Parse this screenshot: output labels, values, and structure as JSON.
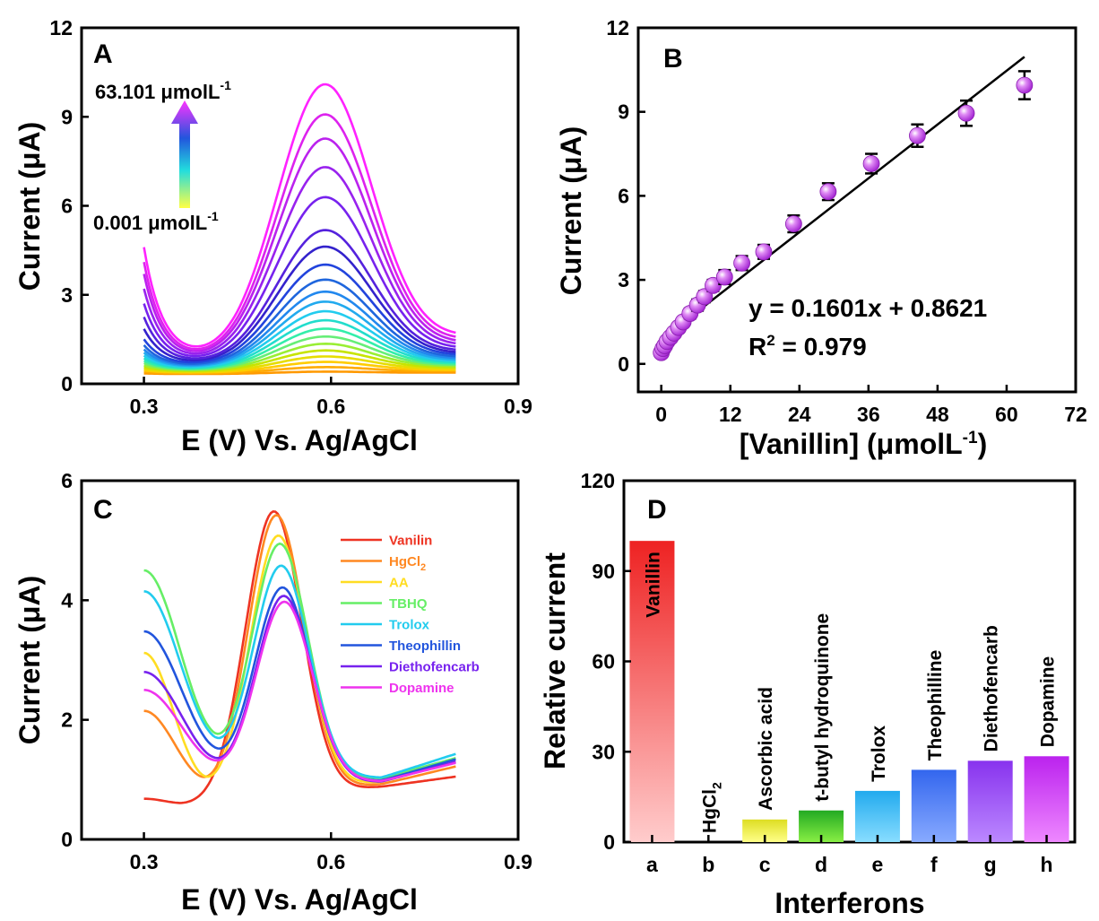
{
  "colors": {
    "A_curves": [
      "#ff9900",
      "#ffaa00",
      "#ffcc00",
      "#e6dd00",
      "#c7e400",
      "#99ee33",
      "#66ee77",
      "#33eeaa",
      "#22ddcc",
      "#22ccee",
      "#22aaee",
      "#2288ee",
      "#1f66dd",
      "#2244dd",
      "#3322cc",
      "#5522dd",
      "#7722ee",
      "#9922ee",
      "#bb22ee",
      "#dd22ee",
      "#ff22ff"
    ],
    "C_series": [
      "#ee3322",
      "#ff8822",
      "#ffdd22",
      "#66ee66",
      "#22ccee",
      "#2255dd",
      "#7722ee",
      "#ee33ee"
    ],
    "D_bar_gradients": [
      [
        "#ee2222",
        "#ffcccc"
      ],
      [
        "#ffffff",
        "#ffffff"
      ],
      [
        "#dddd22",
        "#ffff88"
      ],
      [
        "#22aa22",
        "#88ee44"
      ],
      [
        "#22aaee",
        "#88ddff"
      ],
      [
        "#3366ee",
        "#88aaff"
      ],
      [
        "#8833ee",
        "#bb88ff"
      ],
      [
        "#bb22ee",
        "#ee88ff"
      ]
    ],
    "B_marker": "#cc44ee",
    "arrow_gradient": [
      "#ffff44",
      "#22dddd",
      "#2255dd",
      "#ff33ff"
    ]
  },
  "chart_data": [
    {
      "panel": "A",
      "type": "line",
      "panel_letter": "A",
      "xlabel": "E (V) Vs. Ag/AgCl",
      "ylabel": "Current (μA)",
      "xlim": [
        0.2,
        0.9
      ],
      "ylim": [
        0,
        12
      ],
      "x_ticks": [
        "0.3",
        "0.6",
        "0.9"
      ],
      "x_tick_values": [
        0.3,
        0.6,
        0.9
      ],
      "y_ticks": [
        "0",
        "3",
        "6",
        "9",
        "12"
      ],
      "y_tick_values": [
        0,
        3,
        6,
        9,
        12
      ],
      "annotation_top": "63.101 μmolL",
      "annotation_top_sup": "-1",
      "annotation_bottom": "0.001 μmolL",
      "annotation_bottom_sup": "-1",
      "x_range": [
        0.3,
        0.8
      ],
      "peak_potential": 0.59,
      "series": [
        {
          "start": 0.35,
          "min": 0.33,
          "peak": 0.4,
          "end": 0.38
        },
        {
          "start": 0.4,
          "min": 0.35,
          "peak": 0.55,
          "end": 0.42
        },
        {
          "start": 0.45,
          "min": 0.37,
          "peak": 0.72,
          "end": 0.46
        },
        {
          "start": 0.5,
          "min": 0.39,
          "peak": 0.9,
          "end": 0.5
        },
        {
          "start": 0.56,
          "min": 0.41,
          "peak": 1.1,
          "end": 0.54
        },
        {
          "start": 0.62,
          "min": 0.43,
          "peak": 1.32,
          "end": 0.58
        },
        {
          "start": 0.7,
          "min": 0.45,
          "peak": 1.56,
          "end": 0.62
        },
        {
          "start": 0.78,
          "min": 0.47,
          "peak": 1.82,
          "end": 0.66
        },
        {
          "start": 0.86,
          "min": 0.49,
          "peak": 2.1,
          "end": 0.7
        },
        {
          "start": 0.95,
          "min": 0.51,
          "peak": 2.4,
          "end": 0.74
        },
        {
          "start": 1.05,
          "min": 0.53,
          "peak": 2.72,
          "end": 0.78
        },
        {
          "start": 1.16,
          "min": 0.55,
          "peak": 3.05,
          "end": 0.83
        },
        {
          "start": 1.3,
          "min": 0.57,
          "peak": 3.45,
          "end": 0.88
        },
        {
          "start": 1.5,
          "min": 0.6,
          "peak": 3.95,
          "end": 0.94
        },
        {
          "start": 1.85,
          "min": 0.63,
          "peak": 4.55,
          "end": 1.0
        },
        {
          "start": 2.25,
          "min": 0.66,
          "peak": 5.1,
          "end": 1.07
        },
        {
          "start": 2.7,
          "min": 0.69,
          "peak": 6.2,
          "end": 1.15
        },
        {
          "start": 3.2,
          "min": 0.72,
          "peak": 7.2,
          "end": 1.24
        },
        {
          "start": 3.7,
          "min": 0.75,
          "peak": 8.15,
          "end": 1.33
        },
        {
          "start": 4.1,
          "min": 0.78,
          "peak": 8.95,
          "end": 1.43
        },
        {
          "start": 4.6,
          "min": 0.82,
          "peak": 9.95,
          "end": 1.55
        }
      ]
    },
    {
      "panel": "B",
      "type": "scatter",
      "panel_letter": "B",
      "xlabel": "[Vanillin] (μmolL",
      "xlabel_sup": "-1",
      "xlabel_end": ")",
      "ylabel": "Current (μA)",
      "xlim": [
        -4,
        72
      ],
      "ylim": [
        -1,
        12
      ],
      "x_ticks": [
        "0",
        "12",
        "24",
        "36",
        "48",
        "60",
        "72"
      ],
      "x_tick_values": [
        0,
        12,
        24,
        36,
        48,
        60,
        72
      ],
      "y_ticks": [
        "0",
        "3",
        "6",
        "9",
        "12"
      ],
      "y_tick_values": [
        0,
        3,
        6,
        9,
        12
      ],
      "equation": "y = 0.1601x + 0.8621",
      "r2_label": "R",
      "r2_sup": "2",
      "r2_value": " = 0.979",
      "fit": {
        "slope": 0.1601,
        "intercept": 0.8621,
        "x_range": [
          0,
          63.1
        ]
      },
      "points": [
        {
          "x": 0.001,
          "y": 0.4,
          "err": 0.15
        },
        {
          "x": 0.3,
          "y": 0.55,
          "err": 0.15
        },
        {
          "x": 0.6,
          "y": 0.65,
          "err": 0.15
        },
        {
          "x": 1.0,
          "y": 0.8,
          "err": 0.15
        },
        {
          "x": 1.6,
          "y": 0.95,
          "err": 0.15
        },
        {
          "x": 2.2,
          "y": 1.1,
          "err": 0.15
        },
        {
          "x": 3.0,
          "y": 1.3,
          "err": 0.15
        },
        {
          "x": 3.8,
          "y": 1.5,
          "err": 0.15
        },
        {
          "x": 5.0,
          "y": 1.8,
          "err": 0.18
        },
        {
          "x": 6.3,
          "y": 2.1,
          "err": 0.2
        },
        {
          "x": 7.5,
          "y": 2.4,
          "err": 0.2
        },
        {
          "x": 9.0,
          "y": 2.8,
          "err": 0.2
        },
        {
          "x": 11.0,
          "y": 3.1,
          "err": 0.25
        },
        {
          "x": 14.0,
          "y": 3.6,
          "err": 0.25
        },
        {
          "x": 17.8,
          "y": 4.0,
          "err": 0.25
        },
        {
          "x": 23.0,
          "y": 5.0,
          "err": 0.3
        },
        {
          "x": 29.0,
          "y": 6.15,
          "err": 0.3
        },
        {
          "x": 36.5,
          "y": 7.15,
          "err": 0.35
        },
        {
          "x": 44.5,
          "y": 8.15,
          "err": 0.4
        },
        {
          "x": 53.0,
          "y": 8.95,
          "err": 0.45
        },
        {
          "x": 63.1,
          "y": 9.95,
          "err": 0.5
        }
      ]
    },
    {
      "panel": "C",
      "type": "line",
      "panel_letter": "C",
      "xlabel": "E (V) Vs. Ag/AgCl",
      "ylabel": "Current (μA)",
      "xlim": [
        0.2,
        0.9
      ],
      "ylim": [
        0,
        6
      ],
      "x_ticks": [
        "0.3",
        "0.6",
        "0.9"
      ],
      "x_tick_values": [
        0.3,
        0.6,
        0.9
      ],
      "y_ticks": [
        "0",
        "2",
        "4",
        "6"
      ],
      "y_tick_values": [
        0,
        2,
        4,
        6
      ],
      "x_range": [
        0.3,
        0.8
      ],
      "legend_position": "top-right",
      "series": [
        {
          "name": "Vanilin",
          "start": 0.68,
          "min": 0.55,
          "x_min": 0.36,
          "peak": 5.5,
          "x_peak": 0.508,
          "end_min": 0.88,
          "end": 1.05
        },
        {
          "name": "HgCl",
          "name_sub": "2",
          "start": 2.15,
          "min": 0.58,
          "x_min": 0.39,
          "peak": 5.45,
          "x_peak": 0.512,
          "end_min": 0.92,
          "end": 1.22
        },
        {
          "name": "AA",
          "start": 3.12,
          "min": 0.6,
          "x_min": 0.38,
          "peak": 5.1,
          "x_peak": 0.515,
          "end_min": 0.96,
          "end": 1.3
        },
        {
          "name": "TBHQ",
          "start": 4.5,
          "min": 0.95,
          "x_min": 0.405,
          "peak": 4.95,
          "x_peak": 0.518,
          "end_min": 1.02,
          "end": 1.36
        },
        {
          "name": "Trolox",
          "start": 4.15,
          "min": 1.0,
          "x_min": 0.405,
          "peak": 4.58,
          "x_peak": 0.52,
          "end_min": 1.03,
          "end": 1.43
        },
        {
          "name": "Theophillin",
          "start": 3.48,
          "min": 0.88,
          "x_min": 0.41,
          "peak": 4.22,
          "x_peak": 0.522,
          "end_min": 0.98,
          "end": 1.34
        },
        {
          "name": "Diethofencarb",
          "start": 2.8,
          "min": 0.85,
          "x_min": 0.41,
          "peak": 4.08,
          "x_peak": 0.524,
          "end_min": 0.96,
          "end": 1.3
        },
        {
          "name": "Dopamine",
          "start": 2.5,
          "min": 0.88,
          "x_min": 0.41,
          "peak": 3.98,
          "x_peak": 0.525,
          "end_min": 0.97,
          "end": 1.28
        }
      ]
    },
    {
      "panel": "D",
      "type": "bar",
      "panel_letter": "D",
      "xlabel": "Interferons",
      "ylabel": "Relative current",
      "ylim": [
        0,
        120
      ],
      "y_ticks": [
        "0",
        "30",
        "60",
        "90",
        "120"
      ],
      "y_tick_values": [
        0,
        30,
        60,
        90,
        120
      ],
      "categories": [
        "a",
        "b",
        "c",
        "d",
        "e",
        "f",
        "g",
        "h"
      ],
      "values": [
        100,
        0,
        7.5,
        10.5,
        17,
        24,
        27,
        28.5
      ],
      "bar_labels": [
        "Vanillin",
        "HgCl",
        "Ascorbic acid",
        "t-butyl hydroquinone",
        "Trolox",
        "Theophilline",
        "Diethofencarb",
        "Dopamine"
      ],
      "bar_label_sub": "2"
    }
  ]
}
